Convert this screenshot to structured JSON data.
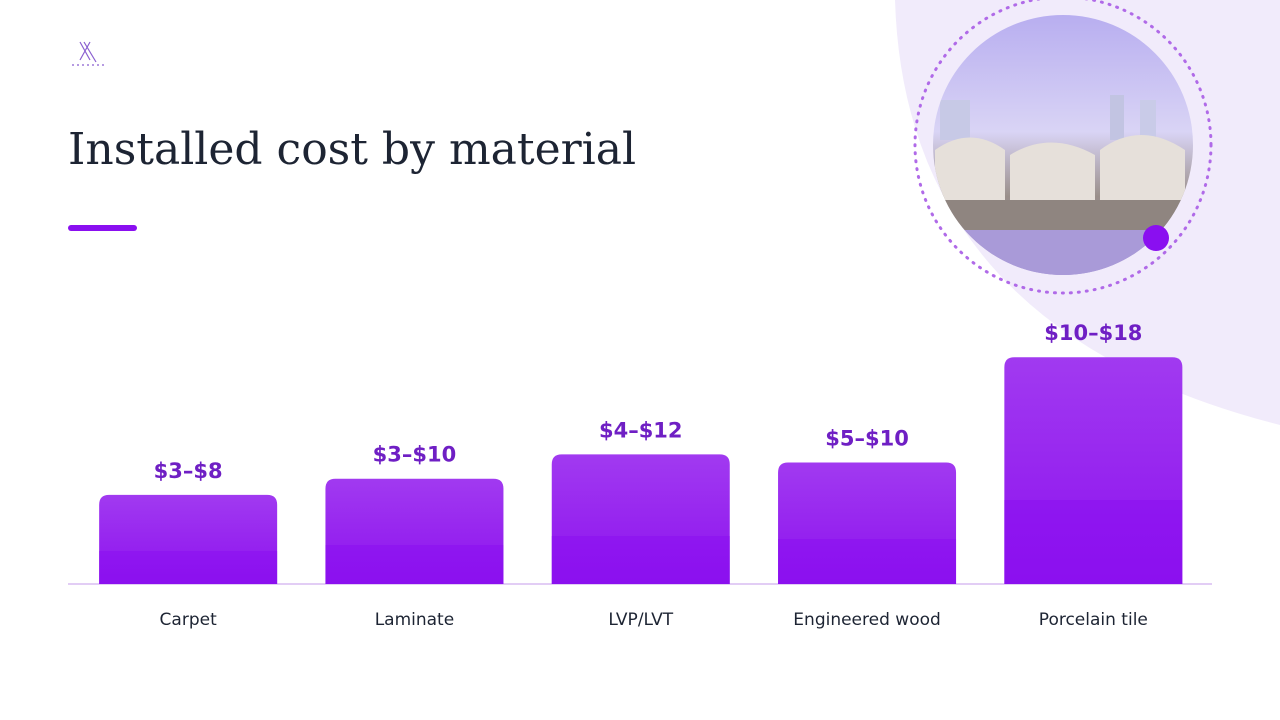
{
  "chart_data": {
    "type": "range-bar",
    "title": "Installed cost by material",
    "categories": [
      "Carpet",
      "Laminate",
      "LVP/LVT",
      "Engineered wood",
      "Porcelain tile"
    ],
    "low": [
      3,
      3,
      4,
      5,
      10
    ],
    "high": [
      8,
      10,
      12,
      10,
      18
    ],
    "value_labels": [
      "$3–$8",
      "$3–$10",
      "$4–$12",
      "$5–$10",
      "$10–$18"
    ],
    "color": "#8a0ff0",
    "ylim": [
      0,
      20
    ]
  }
}
